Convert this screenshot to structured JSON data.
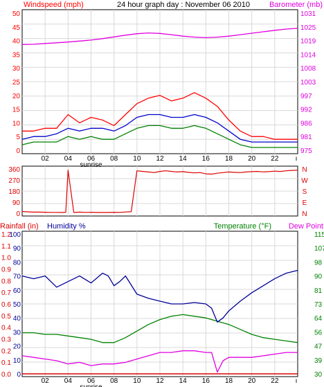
{
  "colors": {
    "wind_max": "#ff0000",
    "wind_avg": "#0000cc",
    "wind_min": "#008000",
    "barometer": "#e000e0",
    "direction": "#dd0000",
    "humidity": "#000099",
    "temperature": "#008000",
    "dew_point": "#e000e0",
    "rainfall": "#dd0000",
    "grid": "#d8d8d8",
    "frame": "#000000"
  },
  "header": {
    "left": "Windspeed (mph)",
    "center": "24 hour graph day : November 06 2010",
    "right": "Barometer (mb)"
  },
  "x_axis": {
    "labels": [
      "02",
      "04",
      "06",
      "08",
      "10",
      "12",
      "14",
      "16",
      "18",
      "20",
      "22"
    ],
    "sunrise_label": "sunrise",
    "end_marker": "ı"
  },
  "chart_data": [
    {
      "type": "line",
      "title": "24 hour graph day : November 06 2010",
      "x_range": [
        0,
        24
      ],
      "y_left": {
        "label": "Windspeed (mph)",
        "ticks": [
          0,
          5,
          10,
          15,
          20,
          25,
          30,
          35,
          40,
          45,
          50
        ],
        "range": [
          0,
          50
        ]
      },
      "y_right": {
        "label": "Barometer (mb)",
        "ticks": [
          "975",
          "981",
          "986",
          "992",
          "997",
          "1003",
          "1008",
          "1014",
          "1019",
          "1025",
          "1031"
        ],
        "range": [
          975,
          1031
        ]
      },
      "series": [
        {
          "axis": "left",
          "x": [
            0,
            1,
            2,
            3,
            4,
            5,
            6,
            7,
            8,
            9,
            10,
            11,
            12,
            13,
            14,
            15,
            16,
            17,
            18,
            19,
            20,
            21,
            22,
            23,
            24
          ],
          "values": [
            7,
            7,
            8,
            8,
            13,
            10,
            12,
            11,
            9,
            13,
            17,
            19,
            20,
            18,
            19,
            21,
            19,
            16,
            11,
            7,
            5,
            5,
            4,
            4,
            4
          ],
          "_color": "#ff0000"
        },
        {
          "axis": "left",
          "x": [
            0,
            1,
            2,
            3,
            4,
            5,
            6,
            7,
            8,
            9,
            10,
            11,
            12,
            13,
            14,
            15,
            16,
            17,
            18,
            19,
            20,
            21,
            22,
            23,
            24
          ],
          "values": [
            4,
            5,
            5,
            6,
            8,
            7,
            8,
            8,
            7,
            9,
            12,
            13,
            13,
            12,
            12,
            13,
            12,
            10,
            7,
            4,
            3,
            3,
            3,
            3,
            3
          ],
          "_color": "#0000cc"
        },
        {
          "axis": "left",
          "x": [
            0,
            1,
            2,
            3,
            4,
            5,
            6,
            7,
            8,
            9,
            10,
            11,
            12,
            13,
            14,
            15,
            16,
            17,
            18,
            19,
            20,
            21,
            22,
            23,
            24
          ],
          "values": [
            2,
            3,
            3,
            3,
            5,
            4,
            5,
            4,
            4,
            6,
            8,
            9,
            9,
            8,
            8,
            9,
            8,
            6,
            4,
            2,
            1,
            1,
            1,
            1,
            1
          ],
          "_color": "#008000"
        },
        {
          "axis": "right",
          "x": [
            0,
            1,
            2,
            3,
            4,
            5,
            6,
            7,
            8,
            9,
            10,
            11,
            12,
            13,
            14,
            15,
            16,
            17,
            18,
            19,
            20,
            21,
            22,
            23,
            24
          ],
          "values": [
            1018.2,
            1018.3,
            1018.6,
            1018.9,
            1019.2,
            1019.6,
            1020.0,
            1020.6,
            1021.3,
            1022.0,
            1022.6,
            1022.9,
            1022.7,
            1022.2,
            1021.6,
            1021.2,
            1021.0,
            1021.2,
            1021.6,
            1022.2,
            1022.8,
            1023.4,
            1024.0,
            1024.5,
            1024.8
          ],
          "_color": "#e000e0"
        }
      ]
    },
    {
      "type": "line",
      "y_left": {
        "ticks": [
          0,
          90,
          180,
          270,
          360
        ],
        "range": [
          0,
          360
        ]
      },
      "y_right": {
        "ticks": [
          "N",
          "E",
          "S",
          "W",
          "N"
        ]
      },
      "series": [
        {
          "x": [
            0,
            0.5,
            1,
            1.5,
            2,
            2.5,
            3,
            3.5,
            3.8,
            4,
            4.5,
            5,
            5.5,
            6,
            6.5,
            7,
            7.5,
            8,
            8.5,
            9,
            9.5,
            10,
            10.5,
            11,
            11.5,
            12,
            12.5,
            13,
            13.5,
            14,
            14.5,
            15,
            15.5,
            16,
            16.5,
            17,
            17.5,
            18,
            18.5,
            19,
            19.5,
            20,
            20.5,
            21,
            21.5,
            22,
            22.5,
            23,
            23.5,
            24
          ],
          "values": [
            14,
            11,
            9,
            9,
            8,
            7,
            7,
            6,
            8,
            350,
            6,
            9,
            7,
            8,
            6,
            7,
            6,
            8,
            7,
            10,
            12,
            345,
            340,
            335,
            330,
            340,
            345,
            340,
            335,
            338,
            332,
            328,
            330,
            320,
            318,
            325,
            330,
            335,
            332,
            330,
            335,
            338,
            340,
            336,
            338,
            342,
            340,
            345,
            348,
            350
          ],
          "_color": "#dd0000"
        }
      ]
    },
    {
      "type": "line",
      "y_rainfall": {
        "label": "Rainfall (in)",
        "ticks": [
          0.0,
          0.1,
          0.2,
          0.3,
          0.4,
          0.5,
          0.6,
          0.7,
          0.8,
          0.9,
          1.0,
          1.1,
          1.2
        ],
        "range": [
          0,
          1.2
        ]
      },
      "y_humidity": {
        "label": "Humidity %",
        "ticks": [
          0,
          10,
          20,
          30,
          40,
          50,
          60,
          70,
          80,
          90,
          100
        ],
        "range": [
          0,
          100
        ]
      },
      "y_temp": {
        "label": "Temperature (°F)",
        "ticks": [
          30,
          39,
          47,
          56,
          64,
          73,
          81,
          90,
          98,
          107,
          115
        ],
        "range": [
          30,
          115
        ]
      },
      "right_label_2": "Dew Point",
      "series": [
        {
          "axis": "humidity",
          "x": [
            0,
            1,
            2,
            3,
            4,
            5,
            6,
            7,
            7.5,
            8,
            8.5,
            9,
            10,
            11,
            12,
            13,
            14,
            15,
            16,
            16.5,
            17,
            17.5,
            18,
            19,
            20,
            21,
            22,
            23,
            24
          ],
          "values": [
            70,
            68,
            70,
            62,
            66,
            70,
            65,
            72,
            70,
            63,
            66,
            70,
            57,
            54,
            52,
            50,
            50,
            51,
            50,
            47,
            37,
            40,
            45,
            52,
            58,
            63,
            68,
            72,
            74
          ],
          "_color": "#000099"
        },
        {
          "axis": "temperature",
          "x": [
            0,
            1,
            2,
            3,
            4,
            5,
            6,
            7,
            8,
            9,
            10,
            11,
            12,
            13,
            14,
            15,
            16,
            17,
            18,
            19,
            20,
            21,
            22,
            23,
            24
          ],
          "values": [
            55,
            55,
            54,
            54,
            53,
            52,
            51,
            49,
            49,
            52,
            56,
            60,
            63,
            65,
            66,
            65,
            64,
            62,
            60,
            57,
            54,
            52,
            51,
            50,
            49
          ],
          "_color": "#008000"
        },
        {
          "axis": "temperature",
          "x": [
            0,
            1,
            2,
            3,
            4,
            5,
            6,
            7,
            8,
            9,
            10,
            11,
            12,
            13,
            14,
            15,
            16,
            16.5,
            17,
            17.5,
            18,
            19,
            20,
            21,
            22,
            23,
            24
          ],
          "values": [
            41,
            40,
            39,
            38,
            36,
            37,
            35,
            36,
            36,
            37,
            39,
            41,
            43,
            43,
            44,
            44,
            43,
            43,
            31,
            38,
            40,
            40,
            40,
            41,
            42,
            43,
            43
          ],
          "_color": "#e000e0"
        },
        {
          "axis": "rainfall",
          "x": [
            0,
            24
          ],
          "values": [
            0.0,
            0.0
          ],
          "_color": "#dd0000"
        }
      ]
    }
  ],
  "panel1": {
    "left_ticks": [
      "50",
      "45",
      "40",
      "35",
      "30",
      "25",
      "20",
      "15",
      "10",
      "5",
      "0"
    ],
    "right_ticks": [
      "1031",
      "1025",
      "1019",
      "1014",
      "1008",
      "1003",
      "997",
      "992",
      "986",
      "981",
      "975"
    ]
  },
  "panel2": {
    "left_ticks": [
      "360",
      "270",
      "180",
      "90",
      "0"
    ],
    "right_ticks": [
      "N",
      "W",
      "S",
      "E",
      "N"
    ]
  },
  "panel3": {
    "header_left1": "Rainfall (in)",
    "header_left2": "Humidity %",
    "header_right1": "Temperature (°F)",
    "header_right2": "Dew Point",
    "rain_ticks": [
      "1.2",
      "1.1",
      "1.0",
      "0.9",
      "0.8",
      "0.7",
      "0.6",
      "0.5",
      "0.4",
      "0.3",
      "0.2",
      "0.1",
      "0.0"
    ],
    "hum_ticks": [
      "100",
      "90",
      "80",
      "70",
      "60",
      "50",
      "40",
      "30",
      "20",
      "10",
      "0"
    ],
    "temp_ticks": [
      "115",
      "107",
      "98",
      "90",
      "81",
      "73",
      "64",
      "56",
      "47",
      "39",
      "30"
    ]
  }
}
